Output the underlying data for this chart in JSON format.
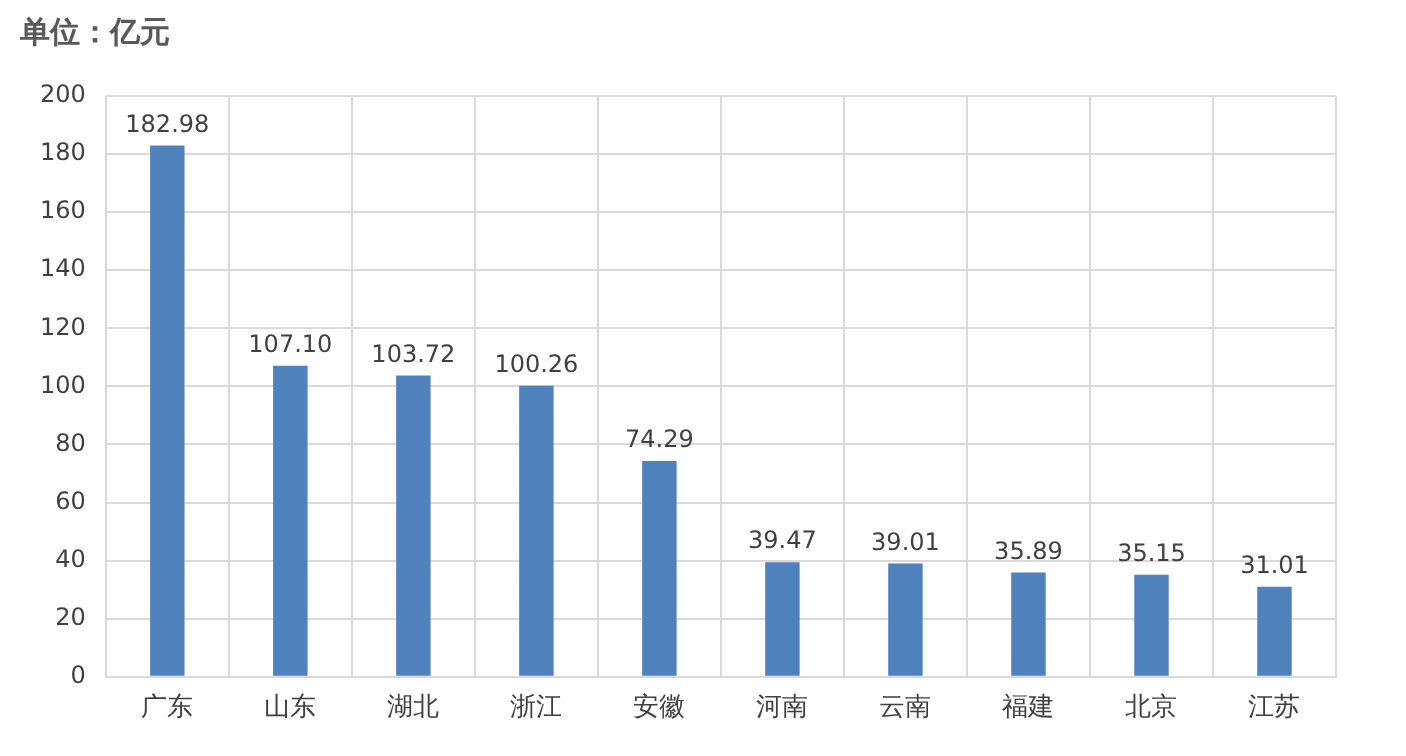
{
  "chart_data": {
    "type": "bar",
    "title": "单位：亿元",
    "categories": [
      "广东",
      "山东",
      "湖北",
      "浙江",
      "安徽",
      "河南",
      "云南",
      "福建",
      "北京",
      "江苏"
    ],
    "values": [
      182.98,
      107.1,
      103.72,
      100.26,
      74.29,
      39.47,
      39.01,
      35.89,
      35.15,
      31.01
    ],
    "value_labels": [
      "182.98",
      "107.10",
      "103.72",
      "100.26",
      "74.29",
      "39.47",
      "39.01",
      "35.89",
      "35.15",
      "31.01"
    ],
    "color": "#4f81bd",
    "ylim": [
      0,
      200
    ],
    "yticks": [
      0,
      20,
      40,
      60,
      80,
      100,
      120,
      140,
      160,
      180,
      200
    ],
    "grid": true
  }
}
